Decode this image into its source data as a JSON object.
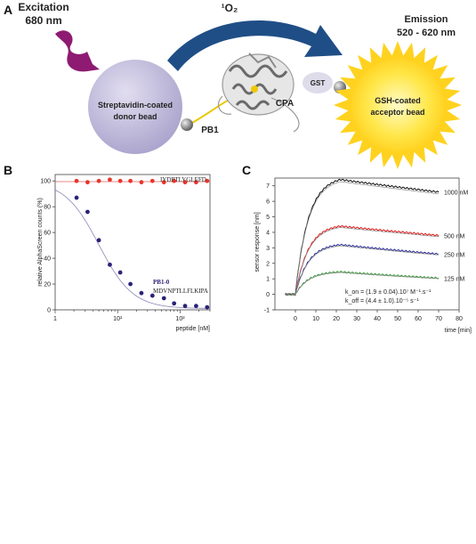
{
  "panel_a": {
    "letter": "A",
    "excitation_label": "Excitation",
    "excitation_nm": "680 nm",
    "singlet_oxygen": "¹O₂",
    "emission_label": "Emission",
    "emission_nm": "520 - 620 nm",
    "donor_bead_line1": "Streptavidin-coated",
    "donor_bead_line2": "donor bead",
    "acceptor_bead_line1": "GSH-coated",
    "acceptor_bead_line2": "acceptor bead",
    "pb1_label": "PB1",
    "cpa_label": "CPA",
    "gst_label": "GST",
    "colors": {
      "excitation_arrow": "#8e1a72",
      "oxygen_arrow": "#1f4e86",
      "donor_bead": "#bcb6d8",
      "acceptor_bead": "#ffe23a",
      "linker": "#e8c800"
    }
  },
  "panel_b": {
    "letter": "B"
  },
  "panel_c": {
    "letter": "C"
  },
  "chart_data": [
    {
      "type": "scatter",
      "panel": "B",
      "xlabel": "peptide [nM]",
      "ylabel": "relative AlphaScreen counts (%)",
      "x_scale": "log",
      "xlim": [
        1,
        300
      ],
      "ylim": [
        0,
        105
      ],
      "x_ticks": [
        {
          "label": "1",
          "value": 1
        },
        {
          "label": "10¹",
          "value": 10
        },
        {
          "label": "10²",
          "value": 100
        }
      ],
      "y_ticks": [
        0,
        20,
        40,
        60,
        80,
        100
      ],
      "series": [
        {
          "name": "IYDPTLYGLEFD",
          "color": "#e8352a",
          "x": [
            2.2,
            3.3,
            5,
            7.5,
            11,
            16,
            24,
            36,
            55,
            80,
            120,
            180,
            270
          ],
          "y": [
            100,
            99,
            100,
            101,
            100,
            100,
            99,
            100,
            99,
            100,
            99,
            99,
            100
          ],
          "fit": {
            "top": 99.5,
            "bottom": 99.5,
            "ic50": 1
          }
        },
        {
          "name": "MDVNPTLLFLKIPA",
          "annotation": "PB1-0",
          "color": "#2a2378",
          "x": [
            2.2,
            3.3,
            5,
            7.5,
            11,
            16,
            24,
            36,
            55,
            80,
            120,
            180,
            270
          ],
          "y": [
            87,
            76,
            54,
            35,
            29,
            20,
            13,
            11,
            9,
            5,
            3,
            3,
            2
          ],
          "fit": {
            "top": 100,
            "bottom": 1,
            "ic50": 5,
            "hill": 1.6
          }
        }
      ]
    },
    {
      "type": "line",
      "panel": "C",
      "xlabel": "time [min]",
      "ylabel": "sensor response [nm]",
      "xlim": [
        -10,
        80
      ],
      "ylim": [
        -1,
        7.5
      ],
      "x_ticks": [
        0,
        10,
        20,
        30,
        40,
        50,
        60,
        70,
        80
      ],
      "y_ticks": [
        -1,
        0,
        1,
        2,
        3,
        4,
        5,
        6,
        7
      ],
      "kon": "k_on = (1.9 ± 0.04).10⁷ M⁻¹.s⁻¹",
      "koff": "k_off = (4.4 ± 1.0).10⁻⁵ s⁻¹",
      "association_end": 22,
      "series": [
        {
          "name": "1000 nM",
          "color": "#111111",
          "peak": 7.4,
          "end": 6.6
        },
        {
          "name": "500 nM",
          "color": "#e01818",
          "peak": 4.4,
          "end": 3.8
        },
        {
          "name": "250 nM",
          "color": "#2a2a9a",
          "peak": 3.2,
          "end": 2.6
        },
        {
          "name": "125 nM",
          "color": "#3a9a3a",
          "peak": 1.45,
          "end": 1.05
        }
      ]
    }
  ]
}
